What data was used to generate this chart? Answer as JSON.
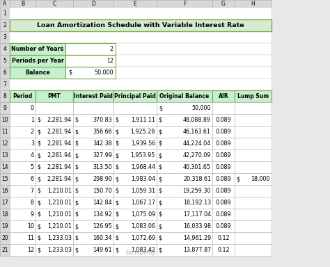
{
  "title": "Loan Amortization Schedule with Variable Interest Rate",
  "col_letters": [
    "A",
    "B",
    "C",
    "D",
    "E",
    "F",
    "G",
    "H"
  ],
  "info_labels": [
    "Number of Years",
    "Periods per Year",
    "Balance"
  ],
  "info_values_plain": [
    "2",
    "12",
    "50,000"
  ],
  "info_balance_dollar": true,
  "table_headers": [
    "Period",
    "PMT",
    "Interest Paid",
    "Principal Paid",
    "Original Balance",
    "AIR",
    "Lump Sum"
  ],
  "row0_balance": "50,000",
  "rows": [
    [
      "1",
      "2,281.94",
      "370.83",
      "1,911.11",
      "48,088.89",
      "0.089",
      ""
    ],
    [
      "2",
      "2,281.94",
      "356.66",
      "1,925.28",
      "46,163.61",
      "0.089",
      ""
    ],
    [
      "3",
      "2,281.94",
      "342.38",
      "1,939.56",
      "44,224.04",
      "0.089",
      ""
    ],
    [
      "4",
      "2,281.94",
      "327.99",
      "1,953.95",
      "42,270.09",
      "0.089",
      ""
    ],
    [
      "5",
      "2,281.94",
      "313.50",
      "1,968.44",
      "40,301.65",
      "0.089",
      ""
    ],
    [
      "6",
      "2,281.94",
      "298.90",
      "1,983.04",
      "20,318.61",
      "0.089",
      "18,000"
    ],
    [
      "7",
      "1,210.01",
      "150.70",
      "1,059.31",
      "19,259.30",
      "0.089",
      ""
    ],
    [
      "8",
      "1,210.01",
      "142.84",
      "1,067.17",
      "18,192.13",
      "0.089",
      ""
    ],
    [
      "9",
      "1,210.01",
      "134.92",
      "1,075.09",
      "17,117.04",
      "0.089",
      ""
    ],
    [
      "10",
      "1,210.01",
      "126.95",
      "1,083.06",
      "16,033.98",
      "0.089",
      ""
    ],
    [
      "11",
      "1,233.03",
      "160.34",
      "1,072.69",
      "14,961.29",
      "0.12",
      ""
    ],
    [
      "12",
      "1,233.03",
      "149.61",
      "1,083.42",
      "13,877.87",
      "0.12",
      ""
    ]
  ],
  "header_bg": "#c6efce",
  "title_bg": "#d9ead3",
  "info_label_bg": "#c6efce",
  "white": "#ffffff",
  "col_header_bg": "#d8d8d8",
  "row_num_bg": "#d8d8d8",
  "grid_dark": "#7fba00",
  "grid_light": "#b0b0b0",
  "fig_bg": "#e8e8e8",
  "title_border": "#70ad47",
  "info_border": "#70ad47"
}
